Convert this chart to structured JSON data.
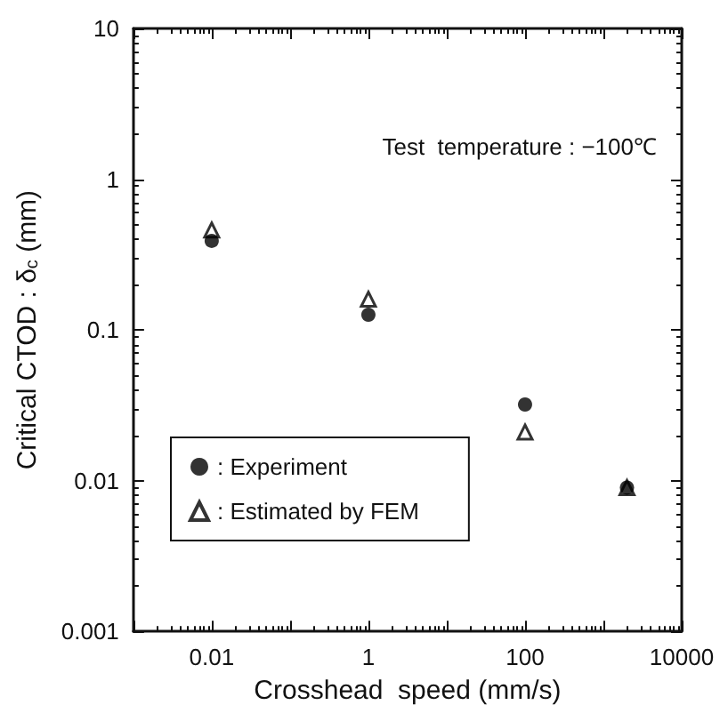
{
  "chart_data": {
    "type": "scatter",
    "xlabel": "Crosshead  speed (mm/s)",
    "ylabel": "Critical CTOD : δ$_{c}$ (mm)",
    "annotations": [
      "Test  temperature : −100℃"
    ],
    "log": "xy",
    "grid": false,
    "legend": "bottom left",
    "xlim": [
      0.001,
      10000
    ],
    "xticks": [
      {
        "value": 0.001,
        "label": null
      },
      0.01,
      {
        "value": 0.1,
        "label": null
      },
      1,
      {
        "value": 10,
        "label": null
      },
      100,
      {
        "value": 1000,
        "label": null
      },
      10000
    ],
    "ylim": [
      0.001,
      10
    ],
    "yticks": [
      0.001,
      0.01,
      0.1,
      1,
      10
    ],
    "series": [
      {
        "name": ": Experiment",
        "marker": "circle",
        "color": "#000000",
        "x": [
          0.01,
          1,
          100,
          2000
        ],
        "values": [
          0.39,
          0.126,
          0.032,
          0.009
        ]
      },
      {
        "name": ": Estimated by FEM",
        "marker": "triangle",
        "color": "#000000",
        "x": [
          0.01,
          1,
          100,
          2000
        ],
        "values": [
          0.46,
          0.16,
          0.021,
          0.009
        ]
      }
    ]
  }
}
